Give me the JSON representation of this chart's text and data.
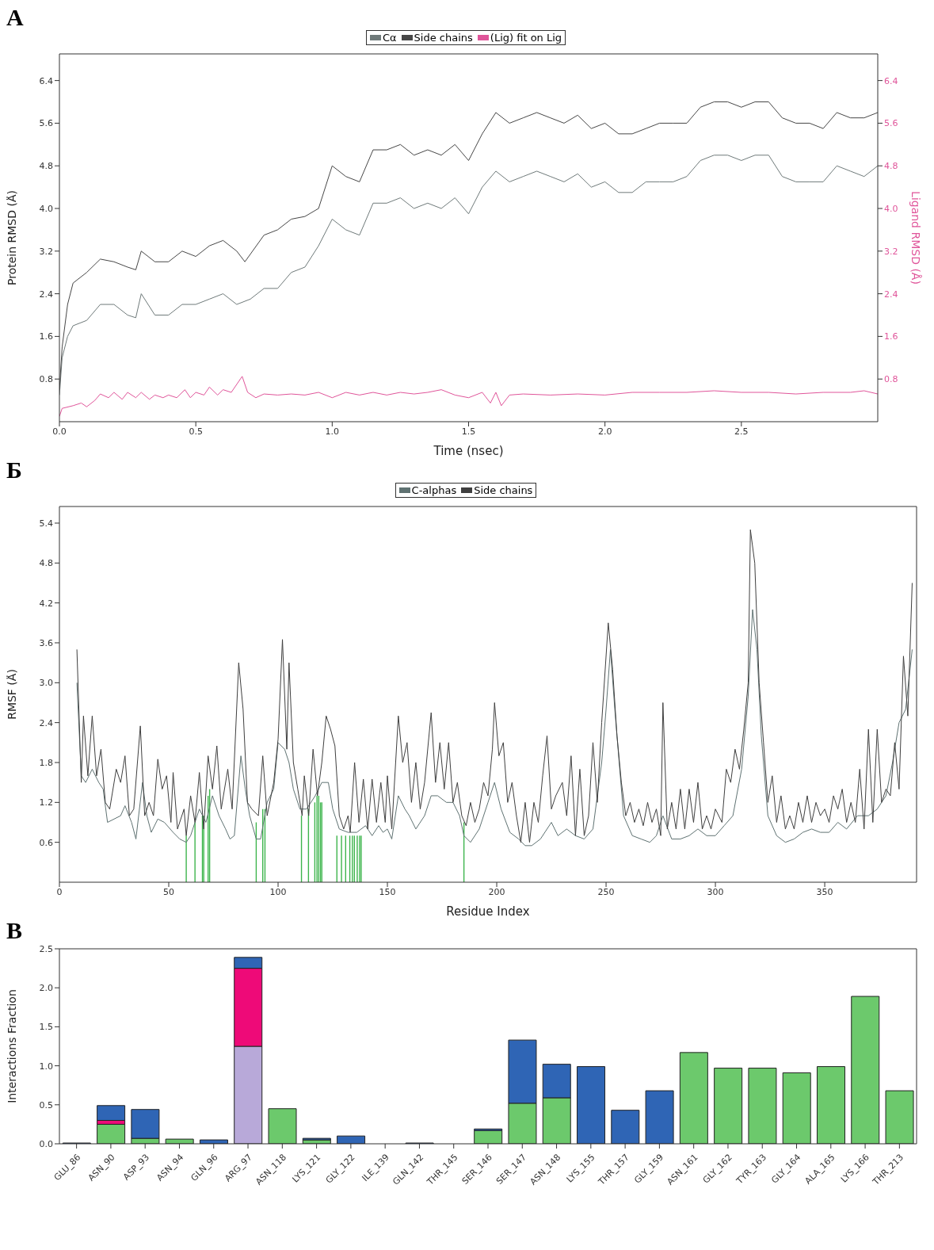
{
  "chart_data": [
    {
      "type": "line",
      "title": "А",
      "xlabel": "Time (nsec)",
      "ylabel": "Protein RMSD (Å)",
      "y2label": "Ligand RMSD (Å)",
      "legend": "top",
      "xlim": [
        0,
        3.0
      ],
      "xticks": [
        {
          "value": 0,
          "label": "0.0"
        },
        0.5,
        {
          "value": 1,
          "label": "1.0"
        },
        1.5,
        {
          "value": 2,
          "label": "2.0"
        },
        2.5
      ],
      "ylim": [
        0,
        6.9
      ],
      "yticks": [
        0.8,
        1.6,
        2.4,
        3.2,
        {
          "value": 4,
          "label": "4.0"
        },
        4.8,
        5.6,
        6.4
      ],
      "y2lim": [
        0,
        6.9
      ],
      "y2ticks": [
        0.8,
        1.6,
        2.4,
        3.2,
        {
          "value": 4,
          "label": "4.0"
        },
        4.8,
        5.6,
        6.4
      ],
      "series": [
        {
          "name": "Cα",
          "color": "#6f7a7a",
          "x": [
            0,
            0.01,
            0.03,
            0.05,
            0.1,
            0.15,
            0.2,
            0.25,
            0.28,
            0.3,
            0.35,
            0.4,
            0.45,
            0.5,
            0.55,
            0.6,
            0.65,
            0.7,
            0.75,
            0.8,
            0.85,
            0.9,
            0.95,
            1.0,
            1.05,
            1.1,
            1.15,
            1.2,
            1.25,
            1.3,
            1.35,
            1.4,
            1.45,
            1.5,
            1.55,
            1.6,
            1.65,
            1.7,
            1.75,
            1.8,
            1.85,
            1.9,
            1.95,
            2.0,
            2.05,
            2.1,
            2.15,
            2.2,
            2.25,
            2.3,
            2.35,
            2.4,
            2.45,
            2.5,
            2.55,
            2.6,
            2.65,
            2.7,
            2.75,
            2.8,
            2.85,
            2.9,
            2.95,
            3.0
          ],
          "values": [
            0.5,
            1.2,
            1.6,
            1.8,
            1.9,
            2.2,
            2.2,
            2.0,
            1.95,
            2.4,
            2.0,
            2.0,
            2.2,
            2.2,
            2.3,
            2.4,
            2.2,
            2.3,
            2.5,
            2.5,
            2.8,
            2.9,
            3.3,
            3.8,
            3.6,
            3.5,
            4.1,
            4.1,
            4.2,
            4.0,
            4.1,
            4.0,
            4.2,
            3.9,
            4.4,
            4.7,
            4.5,
            4.6,
            4.7,
            4.6,
            4.5,
            4.65,
            4.4,
            4.5,
            4.3,
            4.3,
            4.5,
            4.5,
            4.5,
            4.6,
            4.9,
            5.0,
            5.0,
            4.9,
            5.0,
            5.0,
            4.6,
            4.5,
            4.5,
            4.5,
            4.8,
            4.7,
            4.6,
            4.8
          ]
        },
        {
          "name": "Side chains",
          "color": "#474747",
          "x": [
            0,
            0.01,
            0.03,
            0.05,
            0.1,
            0.15,
            0.2,
            0.25,
            0.28,
            0.3,
            0.35,
            0.4,
            0.45,
            0.5,
            0.55,
            0.6,
            0.65,
            0.68,
            0.75,
            0.8,
            0.85,
            0.9,
            0.95,
            1.0,
            1.05,
            1.1,
            1.15,
            1.2,
            1.25,
            1.3,
            1.35,
            1.4,
            1.45,
            1.5,
            1.55,
            1.6,
            1.65,
            1.7,
            1.75,
            1.8,
            1.85,
            1.9,
            1.95,
            2.0,
            2.05,
            2.1,
            2.15,
            2.2,
            2.25,
            2.3,
            2.35,
            2.4,
            2.45,
            2.5,
            2.55,
            2.6,
            2.65,
            2.7,
            2.75,
            2.8,
            2.85,
            2.9,
            2.95,
            3.0
          ],
          "values": [
            0.6,
            1.4,
            2.2,
            2.6,
            2.8,
            3.05,
            3.0,
            2.9,
            2.85,
            3.2,
            3.0,
            3.0,
            3.2,
            3.1,
            3.3,
            3.4,
            3.2,
            3.0,
            3.5,
            3.6,
            3.8,
            3.85,
            4.0,
            4.8,
            4.6,
            4.5,
            5.1,
            5.1,
            5.2,
            5.0,
            5.1,
            5.0,
            5.2,
            4.9,
            5.4,
            5.8,
            5.6,
            5.7,
            5.8,
            5.7,
            5.6,
            5.75,
            5.5,
            5.6,
            5.4,
            5.4,
            5.5,
            5.6,
            5.6,
            5.6,
            5.9,
            6.0,
            6.0,
            5.9,
            6.0,
            6.0,
            5.7,
            5.6,
            5.6,
            5.5,
            5.8,
            5.7,
            5.7,
            5.8
          ]
        },
        {
          "name": "(Lig) fit on Lig",
          "color": "#e0559a",
          "axis": "y2",
          "x": [
            0,
            0.01,
            0.05,
            0.08,
            0.1,
            0.13,
            0.15,
            0.18,
            0.2,
            0.23,
            0.25,
            0.28,
            0.3,
            0.33,
            0.35,
            0.38,
            0.4,
            0.43,
            0.46,
            0.48,
            0.5,
            0.53,
            0.55,
            0.58,
            0.6,
            0.63,
            0.67,
            0.69,
            0.72,
            0.75,
            0.8,
            0.85,
            0.9,
            0.95,
            1.0,
            1.05,
            1.1,
            1.15,
            1.2,
            1.25,
            1.3,
            1.35,
            1.4,
            1.45,
            1.5,
            1.55,
            1.58,
            1.6,
            1.62,
            1.65,
            1.7,
            1.8,
            1.9,
            2.0,
            2.1,
            2.2,
            2.3,
            2.4,
            2.5,
            2.6,
            2.7,
            2.8,
            2.9,
            2.95,
            3.0
          ],
          "values": [
            0.1,
            0.25,
            0.3,
            0.35,
            0.28,
            0.4,
            0.52,
            0.45,
            0.55,
            0.42,
            0.55,
            0.45,
            0.55,
            0.42,
            0.5,
            0.45,
            0.5,
            0.45,
            0.6,
            0.45,
            0.55,
            0.5,
            0.65,
            0.5,
            0.6,
            0.55,
            0.85,
            0.55,
            0.45,
            0.52,
            0.5,
            0.52,
            0.5,
            0.55,
            0.45,
            0.55,
            0.5,
            0.55,
            0.5,
            0.55,
            0.52,
            0.55,
            0.6,
            0.5,
            0.45,
            0.55,
            0.35,
            0.55,
            0.3,
            0.5,
            0.52,
            0.5,
            0.52,
            0.5,
            0.55,
            0.55,
            0.55,
            0.58,
            0.55,
            0.55,
            0.52,
            0.55,
            0.55,
            0.58,
            0.52
          ]
        }
      ]
    },
    {
      "type": "line",
      "title": "Б",
      "xlabel": "Residue Index",
      "ylabel": "RMSF (Å)",
      "legend": "top",
      "xlim": [
        0,
        392
      ],
      "xticks": [
        0,
        50,
        100,
        150,
        200,
        250,
        300,
        350
      ],
      "ylim": [
        0,
        5.65
      ],
      "yticks": [
        0.6,
        1.2,
        1.8,
        2.4,
        {
          "value": 3,
          "label": "3.0"
        },
        3.6,
        4.2,
        4.8,
        5.4
      ],
      "series": [
        {
          "name": "C-alphas",
          "color": "#5f7272",
          "x": [
            8,
            10,
            12,
            15,
            18,
            20,
            22,
            25,
            28,
            30,
            33,
            35,
            38,
            40,
            42,
            45,
            48,
            52,
            55,
            58,
            60,
            64,
            67,
            70,
            73,
            76,
            78,
            80,
            83,
            85,
            87,
            90,
            92,
            95,
            98,
            100,
            103,
            105,
            107,
            110,
            113,
            117,
            120,
            123,
            125,
            128,
            132,
            136,
            140,
            143,
            146,
            148,
            150,
            152,
            155,
            158,
            160,
            163,
            167,
            170,
            173,
            177,
            180,
            183,
            185,
            188,
            192,
            196,
            199,
            202,
            206,
            210,
            213,
            216,
            220,
            225,
            228,
            232,
            236,
            240,
            244,
            248,
            250,
            252,
            254,
            256,
            258,
            262,
            266,
            270,
            273,
            276,
            280,
            284,
            288,
            292,
            296,
            300,
            304,
            308,
            312,
            315,
            317,
            319,
            321,
            324,
            328,
            332,
            336,
            340,
            344,
            348,
            352,
            356,
            360,
            365,
            370,
            374,
            378,
            381,
            384,
            387,
            390
          ],
          "values": [
            3.0,
            1.6,
            1.5,
            1.7,
            1.5,
            1.4,
            0.9,
            0.95,
            1.0,
            1.15,
            0.9,
            0.65,
            1.5,
            1.0,
            0.75,
            0.95,
            0.9,
            0.75,
            0.65,
            0.6,
            0.7,
            1.1,
            0.9,
            1.3,
            1.0,
            0.8,
            0.65,
            0.7,
            1.9,
            1.4,
            1.0,
            0.65,
            0.65,
            1.2,
            1.4,
            2.1,
            2.0,
            1.8,
            1.4,
            1.1,
            1.1,
            1.3,
            1.5,
            1.5,
            1.1,
            0.8,
            0.75,
            0.75,
            0.85,
            0.7,
            0.85,
            0.75,
            0.8,
            0.65,
            1.3,
            1.1,
            1.0,
            0.8,
            1.0,
            1.3,
            1.3,
            1.2,
            1.2,
            1.0,
            0.7,
            0.6,
            0.8,
            1.2,
            1.5,
            1.1,
            0.75,
            0.65,
            0.55,
            0.55,
            0.65,
            0.9,
            0.7,
            0.8,
            0.7,
            0.65,
            0.8,
            1.8,
            2.6,
            3.5,
            2.6,
            1.8,
            1.0,
            0.7,
            0.65,
            0.6,
            0.7,
            1.0,
            0.65,
            0.65,
            0.7,
            0.8,
            0.7,
            0.7,
            0.85,
            1.0,
            1.7,
            2.8,
            4.1,
            3.5,
            2.2,
            1.0,
            0.7,
            0.6,
            0.65,
            0.75,
            0.8,
            0.75,
            0.75,
            0.9,
            0.8,
            1.0,
            1.0,
            1.1,
            1.3,
            1.8,
            2.4,
            2.6,
            3.5
          ]
        },
        {
          "name": "Side chains",
          "color": "#3f3f3f",
          "x": [
            8,
            10,
            11,
            13,
            15,
            17,
            19,
            21,
            23,
            26,
            28,
            30,
            32,
            34,
            37,
            39,
            41,
            43,
            45,
            47,
            49,
            51,
            52,
            54,
            57,
            58,
            60,
            62,
            64,
            66,
            68,
            70,
            72,
            74,
            77,
            79,
            82,
            84,
            86,
            88,
            91,
            93,
            95,
            98,
            100,
            102,
            104,
            105,
            107,
            109,
            111,
            112,
            114,
            116,
            118,
            120,
            122,
            124,
            126,
            128,
            130,
            132,
            133,
            135,
            137,
            139,
            141,
            143,
            145,
            147,
            149,
            150,
            152,
            155,
            157,
            159,
            161,
            163,
            165,
            167,
            170,
            172,
            174,
            176,
            178,
            180,
            182,
            184,
            186,
            188,
            190,
            192,
            194,
            196,
            198,
            199,
            201,
            203,
            205,
            207,
            209,
            211,
            213,
            215,
            217,
            219,
            221,
            223,
            225,
            227,
            230,
            232,
            234,
            236,
            238,
            240,
            242,
            244,
            246,
            248,
            251,
            253,
            255,
            257,
            259,
            261,
            263,
            265,
            267,
            269,
            271,
            273,
            275,
            276,
            278,
            280,
            282,
            284,
            286,
            288,
            290,
            292,
            294,
            296,
            298,
            300,
            303,
            305,
            307,
            309,
            311,
            313,
            315,
            316,
            318,
            320,
            322,
            324,
            326,
            328,
            330,
            332,
            334,
            336,
            338,
            340,
            342,
            344,
            346,
            348,
            350,
            352,
            354,
            356,
            358,
            360,
            362,
            364,
            366,
            368,
            370,
            372,
            374,
            376,
            378,
            380,
            382,
            384,
            386,
            388,
            390
          ],
          "values": [
            3.5,
            1.5,
            2.5,
            1.6,
            2.5,
            1.6,
            2.0,
            1.2,
            1.1,
            1.7,
            1.5,
            1.9,
            1.0,
            1.1,
            2.35,
            1.0,
            1.2,
            1.0,
            1.85,
            1.4,
            1.6,
            0.9,
            1.65,
            0.8,
            1.1,
            0.7,
            1.3,
            0.9,
            1.65,
            0.8,
            1.9,
            1.4,
            2.05,
            1.1,
            1.7,
            1.1,
            3.3,
            2.6,
            1.2,
            1.1,
            1.0,
            1.9,
            1.0,
            1.5,
            2.15,
            3.65,
            2.0,
            3.3,
            1.8,
            1.4,
            1.0,
            1.6,
            1.0,
            2.0,
            1.3,
            1.8,
            2.5,
            2.3,
            2.05,
            1.0,
            0.8,
            1.0,
            0.75,
            1.8,
            0.9,
            1.55,
            0.8,
            1.55,
            0.9,
            1.5,
            0.9,
            1.6,
            0.8,
            2.5,
            1.8,
            2.1,
            1.2,
            1.8,
            1.1,
            1.5,
            2.55,
            1.5,
            2.1,
            1.4,
            2.1,
            1.2,
            1.5,
            1.0,
            0.85,
            1.2,
            0.9,
            1.1,
            1.5,
            1.3,
            2.0,
            2.7,
            1.9,
            2.1,
            1.2,
            1.5,
            1.0,
            0.6,
            1.2,
            0.6,
            1.2,
            0.9,
            1.6,
            2.2,
            1.1,
            1.3,
            1.5,
            1.0,
            1.9,
            0.7,
            1.7,
            0.7,
            1.0,
            2.1,
            1.2,
            2.4,
            3.9,
            3.2,
            2.2,
            1.5,
            1.0,
            1.2,
            0.9,
            1.1,
            0.85,
            1.2,
            0.9,
            1.1,
            0.7,
            2.7,
            0.8,
            1.2,
            0.8,
            1.4,
            0.8,
            1.4,
            0.9,
            1.5,
            0.8,
            1.0,
            0.8,
            1.1,
            0.9,
            1.7,
            1.5,
            2.0,
            1.7,
            2.3,
            3.0,
            5.3,
            4.8,
            3.0,
            2.1,
            1.2,
            1.6,
            0.9,
            1.3,
            0.8,
            1.0,
            0.8,
            1.2,
            0.9,
            1.3,
            0.9,
            1.2,
            1.0,
            1.1,
            0.9,
            1.3,
            1.1,
            1.4,
            0.9,
            1.2,
            0.9,
            1.7,
            0.8,
            2.3,
            0.9,
            2.3,
            1.2,
            1.4,
            1.3,
            2.1,
            1.4,
            3.4,
            2.5,
            4.5
          ]
        },
        {
          "type": "bar",
          "color": "#3cb44b",
          "x": [
            58,
            62,
            65.4,
            66,
            68,
            68.7,
            90,
            93,
            94,
            110.7,
            113.9,
            116.8,
            117.8,
            118.6,
            119.4,
            120,
            126.9,
            129,
            130.9,
            132.8,
            134,
            134.9,
            136.2,
            137.3,
            138,
            185
          ],
          "values": [
            0.7,
            0.9,
            1.0,
            1.0,
            1.3,
            1.4,
            0.9,
            1.1,
            1.1,
            1.0,
            1.1,
            1.2,
            1.3,
            1.3,
            1.2,
            1.2,
            0.7,
            0.7,
            0.7,
            0.7,
            0.7,
            0.7,
            0.7,
            0.7,
            0.7,
            0.9
          ]
        }
      ]
    },
    {
      "type": "bar",
      "title": "В",
      "ylabel": "Interactions Fraction",
      "stacked": true,
      "categories": [
        "GLU_86",
        "ASN_90",
        "ASP_93",
        "ASN_94",
        "GLN_96",
        "ARG_97",
        "ASN_118",
        "LYS_121",
        "GLY_122",
        "ILE_139",
        "GLN_142",
        "THR_145",
        "SER_146",
        "SER_147",
        "ASN_148",
        "LYS_155",
        "THR_157",
        "GLY_159",
        "ASN_161",
        "GLY_162",
        "TYR_163",
        "GLY_164",
        "ALA_165",
        "LYS_166",
        "THR_213"
      ],
      "ylim": [
        0,
        2.5
      ],
      "yticks": [
        {
          "value": 0,
          "label": "0.0"
        },
        0.5,
        {
          "value": 1,
          "label": "1.0"
        },
        1.5,
        {
          "value": 2,
          "label": "2.0"
        },
        2.5
      ],
      "series": [
        {
          "color": "#6cc96c",
          "values": [
            0,
            0.25,
            0.07,
            0.06,
            0,
            0,
            0.45,
            0.05,
            0,
            0,
            0,
            0,
            0.17,
            0.52,
            0.59,
            0,
            0,
            0,
            1.17,
            0.97,
            0.97,
            0.91,
            0.99,
            1.89,
            0.68
          ]
        },
        {
          "color": "#b8a9d9",
          "values": [
            0,
            0,
            0,
            0,
            0,
            1.25,
            0,
            0,
            0,
            0,
            0,
            0,
            0,
            0,
            0,
            0,
            0,
            0,
            0,
            0,
            0,
            0,
            0,
            0,
            0
          ]
        },
        {
          "color": "#ee0a78",
          "values": [
            0,
            0.05,
            0,
            0,
            0,
            1.0,
            0,
            0,
            0,
            0,
            0,
            0,
            0,
            0,
            0,
            0,
            0,
            0,
            0,
            0,
            0,
            0,
            0,
            0,
            0
          ]
        },
        {
          "color": "#2f65b5",
          "values": [
            0.01,
            0.19,
            0.37,
            0,
            0.05,
            0.14,
            0,
            0.02,
            0.1,
            0,
            0.01,
            0,
            0.02,
            0.81,
            0.43,
            0.99,
            0.43,
            0.68,
            0,
            0,
            0,
            0,
            0,
            0,
            0
          ]
        }
      ]
    }
  ]
}
